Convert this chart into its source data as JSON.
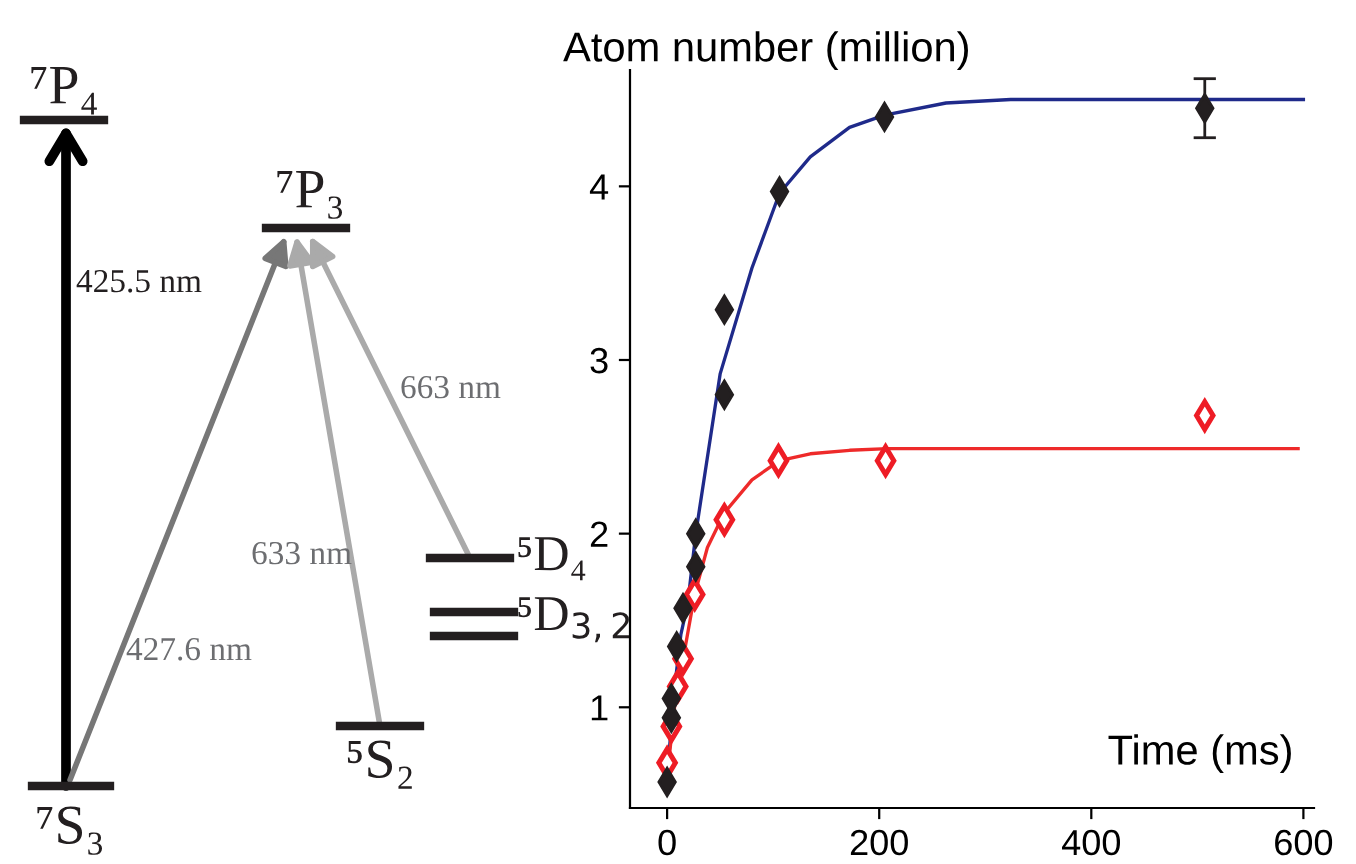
{
  "chart_data": {
    "type": "scatter",
    "ylabel": "Atom number (million)",
    "xlabel": "Time (ms)",
    "xlim": [
      -35,
      610
    ],
    "xticks": [
      0,
      200,
      400,
      600
    ],
    "ylim": [
      0.42,
      4.67
    ],
    "yticks": [
      1,
      2,
      3,
      4
    ],
    "grid": false,
    "marker": "diamond",
    "series": [
      {
        "color": "#231f20",
        "x": [
          0,
          4,
          4,
          9,
          15,
          27,
          27,
          54,
          54,
          106,
          205,
          507
        ],
        "values": [
          0.57,
          0.94,
          1.05,
          1.35,
          1.57,
          1.81,
          2.0,
          2.8,
          3.29,
          3.97,
          4.4,
          4.45
        ],
        "errors": [
          null,
          null,
          null,
          null,
          null,
          null,
          null,
          null,
          null,
          null,
          null,
          [
            4.28,
            4.62
          ]
        ]
      },
      {
        "color": "#ee1c25",
        "x": [
          0,
          4,
          10,
          15,
          26,
          54,
          105,
          206,
          507
        ],
        "values": [
          0.68,
          0.89,
          1.12,
          1.28,
          1.65,
          2.08,
          2.42,
          2.42,
          2.68
        ]
      },
      {
        "type": "line",
        "marker": "none",
        "color": "#1f2a8a",
        "x": [
          0,
          7,
          13,
          19.5,
          27,
          50,
          80,
          106,
          135,
          172,
          205,
          263,
          324,
          600
        ],
        "values": [
          0.6,
          1.11,
          1.42,
          1.6,
          2.0,
          2.92,
          3.53,
          3.96,
          4.17,
          4.34,
          4.41,
          4.48,
          4.5,
          4.5
        ]
      },
      {
        "type": "line",
        "marker": "none",
        "color": "#ee2a2a",
        "x": [
          0,
          7,
          16,
          26,
          38,
          54,
          80,
          106,
          135,
          172,
          208,
          595
        ],
        "values": [
          0.6,
          1.0,
          1.31,
          1.65,
          1.92,
          2.12,
          2.31,
          2.42,
          2.46,
          2.48,
          2.49,
          2.49
        ]
      }
    ],
    "annotations": [
      "⁷P₄",
      "⁷S₃",
      "⁷P₃",
      "⁵S₂",
      "⁵D₄",
      "⁵D$_{3,2}$",
      "425.5 nm",
      "427.6 nm",
      "633 nm",
      "663 nm"
    ]
  }
}
